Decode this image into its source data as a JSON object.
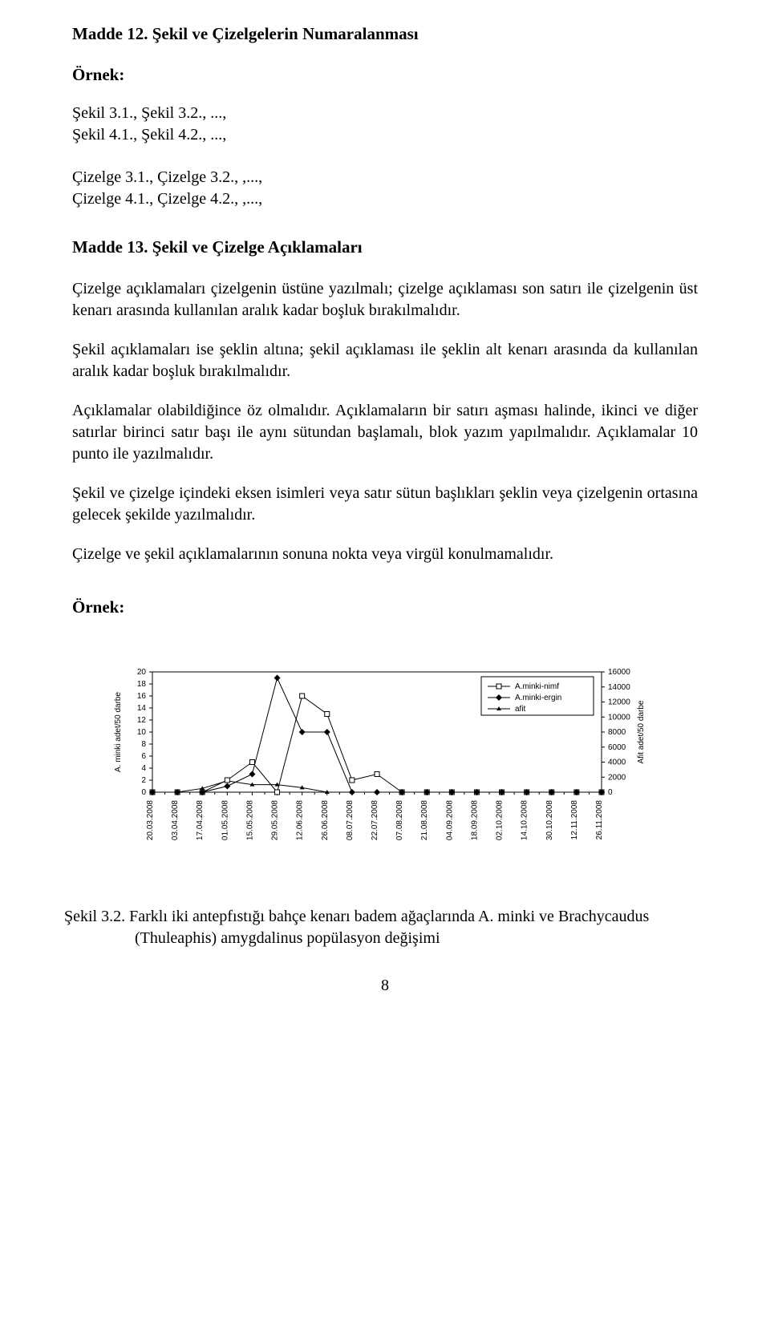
{
  "heading1": "Madde 12. Şekil ve Çizelgelerin Numaralanması",
  "ornek_label": "Örnek:",
  "ex_lines": {
    "l1": "Şekil 3.1., Şekil 3.2., ...,",
    "l2": "Şekil 4.1., Şekil 4.2., ...,",
    "l3": "Çizelge 3.1., Çizelge 3.2., ,...,",
    "l4": "Çizelge 4.1., Çizelge 4.2., ,...,"
  },
  "heading2": "Madde 13. Şekil ve Çizelge Açıklamaları",
  "p1": "Çizelge açıklamaları çizelgenin üstüne yazılmalı; çizelge açıklaması son satırı ile çizelgenin üst kenarı arasında kullanılan aralık kadar boşluk bırakılmalıdır.",
  "p2": "Şekil açıklamaları ise şeklin altına; şekil açıklaması ile şeklin alt kenarı arasında da kullanılan aralık kadar boşluk bırakılmalıdır.",
  "p3": "Açıklamalar olabildiğince öz olmalıdır. Açıklamaların bir satırı aşması halinde, ikinci ve diğer satırlar birinci satır başı ile aynı sütundan başlamalı, blok yazım yapılmalıdır. Açıklamalar 10 punto ile yazılmalıdır.",
  "p4": "Şekil ve çizelge içindeki eksen isimleri veya satır sütun başlıkları şeklin veya çizelgenin ortasına gelecek şekilde yazılmalıdır.",
  "p5": "Çizelge ve şekil açıklamalarının sonuna nokta veya virgül konulmamalıdır.",
  "chart": {
    "type": "line",
    "y1_label": "A. minki adet/50 darbe",
    "y2_label": "Afit adet/50 darbe",
    "y1_ticks": [
      0,
      2,
      4,
      6,
      8,
      10,
      12,
      14,
      16,
      18,
      20
    ],
    "y2_ticks": [
      0,
      2000,
      4000,
      6000,
      8000,
      10000,
      12000,
      14000,
      16000
    ],
    "x_labels": [
      "20.03.2008",
      "03.04.2008",
      "17.04.2008",
      "01.05.2008",
      "15.05.2008",
      "29.05.2008",
      "12.06.2008",
      "26.06.2008",
      "08.07.2008",
      "22.07.2008",
      "07.08.2008",
      "21.08.2008",
      "04.09.2008",
      "18.09.2008",
      "02.10.2008",
      "14.10.2008",
      "30.10.2008",
      "12.11.2008",
      "26.11.2008"
    ],
    "legend": {
      "s1": "A.minki-nimf",
      "s2": "A.minki-ergin",
      "s3": "afit"
    },
    "colors": {
      "line": "#000000",
      "bg": "#ffffff",
      "text": "#000000"
    },
    "series": {
      "nimf": [
        0,
        0,
        0,
        2,
        5,
        0,
        16,
        13,
        2,
        3,
        0,
        0,
        0,
        0,
        0,
        0,
        0,
        0,
        0
      ],
      "ergin": [
        0,
        0,
        0,
        1,
        3,
        19,
        10,
        10,
        0,
        0,
        0,
        0,
        0,
        0,
        0,
        0,
        0,
        0,
        0
      ],
      "afit": [
        0,
        0,
        500,
        1500,
        1000,
        1000,
        600,
        0,
        0,
        0,
        0,
        0,
        0,
        0,
        0,
        0,
        0,
        0,
        0
      ]
    },
    "y1_max": 20,
    "y2_max": 16000,
    "label_fontsize": 10,
    "tick_fontsize": 10
  },
  "caption_line1": "Şekil 3.2. Farklı iki antepfıstığı bahçe kenarı badem ağaçlarında A. minki ve Brachycaudus",
  "caption_line2": "(Thuleaphis) amygdalinus popülasyon değişimi",
  "page_number": "8"
}
